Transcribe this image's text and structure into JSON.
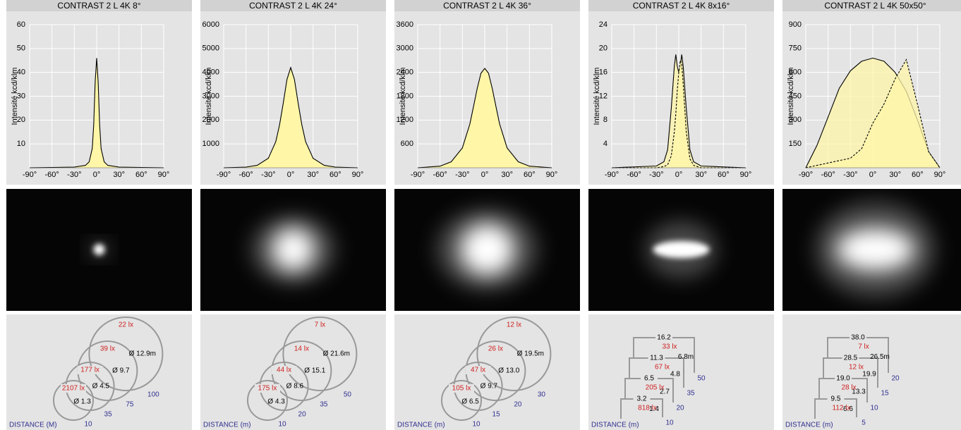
{
  "chart_data": [
    {
      "type": "area",
      "title": "CONTRAST 2 L 4K 8°",
      "y_label": "Intensité kcd/klm",
      "fill": "#fff6a8",
      "grid": true,
      "x": [
        -90,
        -30,
        -15,
        -10,
        -6,
        -4,
        -2,
        0,
        2,
        4,
        6,
        10,
        15,
        30,
        90
      ],
      "series": [
        {
          "color": "#000000",
          "dashed": false,
          "values": [
            0,
            0.3,
            1,
            2.5,
            8,
            18,
            36,
            46,
            36,
            18,
            8,
            2.5,
            1,
            0.3,
            0
          ]
        }
      ],
      "xlim": [
        -90,
        90
      ],
      "ylim": [
        0,
        60
      ],
      "xticks": [
        {
          "value": -90,
          "label": "-90°"
        },
        {
          "value": -60,
          "label": "-60°"
        },
        {
          "value": -30,
          "label": "-30°"
        },
        {
          "value": 0,
          "label": "0°"
        },
        {
          "value": 30,
          "label": "30°"
        },
        {
          "value": 60,
          "label": "60°"
        },
        {
          "value": 90,
          "label": "90°"
        }
      ],
      "yticks": [
        10,
        20,
        30,
        40,
        50,
        60
      ]
    },
    {
      "type": "area",
      "title": "CONTRAST 2 L 4K 24°",
      "y_label": "Intensité kcd/klm",
      "fill": "#fff6a8",
      "grid": true,
      "x": [
        -90,
        -60,
        -45,
        -30,
        -20,
        -15,
        -10,
        -5,
        0,
        5,
        10,
        15,
        20,
        30,
        45,
        60,
        90
      ],
      "series": [
        {
          "color": "#000000",
          "dashed": false,
          "values": [
            0,
            30,
            100,
            400,
            1100,
            1800,
            2700,
            3700,
            4200,
            3700,
            2700,
            1800,
            1100,
            400,
            100,
            30,
            0
          ]
        }
      ],
      "xlim": [
        -90,
        90
      ],
      "ylim": [
        0,
        6000
      ],
      "xticks": [
        {
          "value": -90,
          "label": "-90°"
        },
        {
          "value": -60,
          "label": "-60°"
        },
        {
          "value": -30,
          "label": "-30°"
        },
        {
          "value": 0,
          "label": "0°"
        },
        {
          "value": 30,
          "label": "30°"
        },
        {
          "value": 60,
          "label": "60°"
        },
        {
          "value": 90,
          "label": "90°"
        }
      ],
      "yticks": [
        1000,
        2000,
        3000,
        4000,
        5000,
        6000
      ]
    },
    {
      "type": "area",
      "title": "CONTRAST 2 L 4K 36°",
      "y_label": "Intensité kcd/klm",
      "fill": "#fff6a8",
      "grid": true,
      "x": [
        -90,
        -60,
        -45,
        -30,
        -20,
        -15,
        -10,
        -5,
        0,
        5,
        10,
        15,
        20,
        30,
        45,
        60,
        90
      ],
      "series": [
        {
          "color": "#000000",
          "dashed": false,
          "values": [
            0,
            40,
            150,
            500,
            1100,
            1550,
            2000,
            2380,
            2500,
            2380,
            2000,
            1550,
            1100,
            500,
            150,
            40,
            0
          ]
        }
      ],
      "xlim": [
        -90,
        90
      ],
      "ylim": [
        0,
        3600
      ],
      "xticks": [
        {
          "value": -90,
          "label": "-90°"
        },
        {
          "value": -60,
          "label": "-60°"
        },
        {
          "value": -30,
          "label": "-30°"
        },
        {
          "value": 0,
          "label": "0°"
        },
        {
          "value": 30,
          "label": "30°"
        },
        {
          "value": 60,
          "label": "60°"
        },
        {
          "value": 90,
          "label": "90°"
        }
      ],
      "yticks": [
        600,
        1200,
        1800,
        2400,
        3000,
        3600
      ]
    },
    {
      "type": "area",
      "title": "CONTRAST 2 L 4K 8x16°",
      "y_label": "Intensité kcd/klm",
      "fill": "#fff6a8",
      "grid": true,
      "x": [
        -90,
        -30,
        -20,
        -15,
        -10,
        -6,
        -4,
        -2,
        0,
        2,
        4,
        6,
        10,
        15,
        20,
        30,
        90
      ],
      "series": [
        {
          "color": "#000000",
          "dashed": false,
          "values": [
            0,
            0.3,
            1,
            3,
            10,
            17,
            19,
            17,
            16,
            17,
            19,
            17,
            10,
            3,
            1,
            0.3,
            0
          ]
        },
        {
          "color": "#000000",
          "dashed": true,
          "values": [
            0,
            0,
            0.2,
            0.5,
            2,
            6,
            9,
            13,
            16,
            18,
            17.5,
            14,
            6,
            1.5,
            0.4,
            0,
            0
          ]
        }
      ],
      "xlim": [
        -90,
        90
      ],
      "ylim": [
        0,
        24
      ],
      "xticks": [
        {
          "value": -90,
          "label": "-90°"
        },
        {
          "value": -60,
          "label": "-60°"
        },
        {
          "value": -30,
          "label": "-30°"
        },
        {
          "value": 0,
          "label": "0°"
        },
        {
          "value": 30,
          "label": "30°"
        },
        {
          "value": 60,
          "label": "60°"
        },
        {
          "value": 90,
          "label": "90°"
        }
      ],
      "yticks": [
        4,
        8,
        12,
        16,
        20,
        24
      ]
    },
    {
      "type": "area",
      "title": "CONTRAST 2 L 4K 50x50°",
      "y_label": "Intensité kcd/klm",
      "fill": "#fff6a8",
      "grid": true,
      "x": [
        -90,
        -75,
        -60,
        -45,
        -30,
        -15,
        0,
        15,
        30,
        45,
        60,
        75,
        90
      ],
      "series": [
        {
          "color": "#000000",
          "dashed": false,
          "values": [
            0,
            140,
            320,
            500,
            610,
            670,
            690,
            670,
            600,
            480,
            300,
            100,
            0
          ]
        },
        {
          "color": "#000000",
          "dashed": true,
          "values": [
            0,
            15,
            30,
            45,
            60,
            120,
            280,
            400,
            560,
            680,
            400,
            100,
            0
          ]
        }
      ],
      "xlim": [
        -90,
        90
      ],
      "ylim": [
        0,
        900
      ],
      "xticks": [
        {
          "value": -90,
          "label": "-90°"
        },
        {
          "value": -60,
          "label": "-60°"
        },
        {
          "value": -30,
          "label": "-30°"
        },
        {
          "value": 0,
          "label": "0°"
        },
        {
          "value": 30,
          "label": "30°"
        },
        {
          "value": 60,
          "label": "60°"
        },
        {
          "value": 90,
          "label": "90°"
        }
      ],
      "yticks": [
        150,
        300,
        450,
        600,
        750,
        900
      ]
    }
  ],
  "diagrams": [
    {
      "kind": "circles",
      "distance_label": "DISTANCE (M)",
      "rows": [
        {
          "distance": 10,
          "lux": "2107 lx",
          "size": "Ø 1.3"
        },
        {
          "distance": 35,
          "lux": "177 lx",
          "size": "Ø 4.5"
        },
        {
          "distance": 75,
          "lux": "39 lx",
          "size": "Ø 9.7"
        },
        {
          "distance": 100,
          "lux": "22 lx",
          "size": "Ø 12.9m"
        }
      ]
    },
    {
      "kind": "circles",
      "distance_label": "DISTANCE (m)",
      "rows": [
        {
          "distance": 10,
          "lux": "175 lx",
          "size": "Ø 4.3"
        },
        {
          "distance": 20,
          "lux": "44 lx",
          "size": "Ø 8.6"
        },
        {
          "distance": 35,
          "lux": "14 lx",
          "size": "Ø 15.1"
        },
        {
          "distance": 50,
          "lux": "7 lx",
          "size": "Ø 21.6m"
        }
      ]
    },
    {
      "kind": "circles",
      "distance_label": "DISTANCE (m)",
      "rows": [
        {
          "distance": 10,
          "lux": "105 lx",
          "size": "Ø 6.5"
        },
        {
          "distance": 15,
          "lux": "47 lx",
          "size": "Ø 9.7"
        },
        {
          "distance": 20,
          "lux": "26 lx",
          "size": "Ø 13.0"
        },
        {
          "distance": 30,
          "lux": "12 lx",
          "size": "Ø 19.5m"
        }
      ]
    },
    {
      "kind": "steps",
      "distance_label": "DISTANCE (m)",
      "rows": [
        {
          "distance": 10,
          "lux": "818 lx",
          "width": "3.2",
          "height": "1.4"
        },
        {
          "distance": 20,
          "lux": "205 lx",
          "width": "6.5",
          "height": "2.7"
        },
        {
          "distance": 35,
          "lux": "67 lx",
          "width": "11.3",
          "height": "4.8"
        },
        {
          "distance": 50,
          "lux": "33 lx",
          "width": "16.2",
          "height": "6.8m"
        }
      ]
    },
    {
      "kind": "steps",
      "distance_label": "DISTANCE (m)",
      "rows": [
        {
          "distance": 5,
          "lux": "112 lx",
          "width": "9.5",
          "height": "6.6"
        },
        {
          "distance": 10,
          "lux": "28 lx",
          "width": "19.0",
          "height": "13.3"
        },
        {
          "distance": 15,
          "lux": "12 lx",
          "width": "28.5",
          "height": "19.9"
        },
        {
          "distance": 20,
          "lux": "7 lx",
          "width": "38.0",
          "height": "26.5m"
        }
      ]
    }
  ]
}
